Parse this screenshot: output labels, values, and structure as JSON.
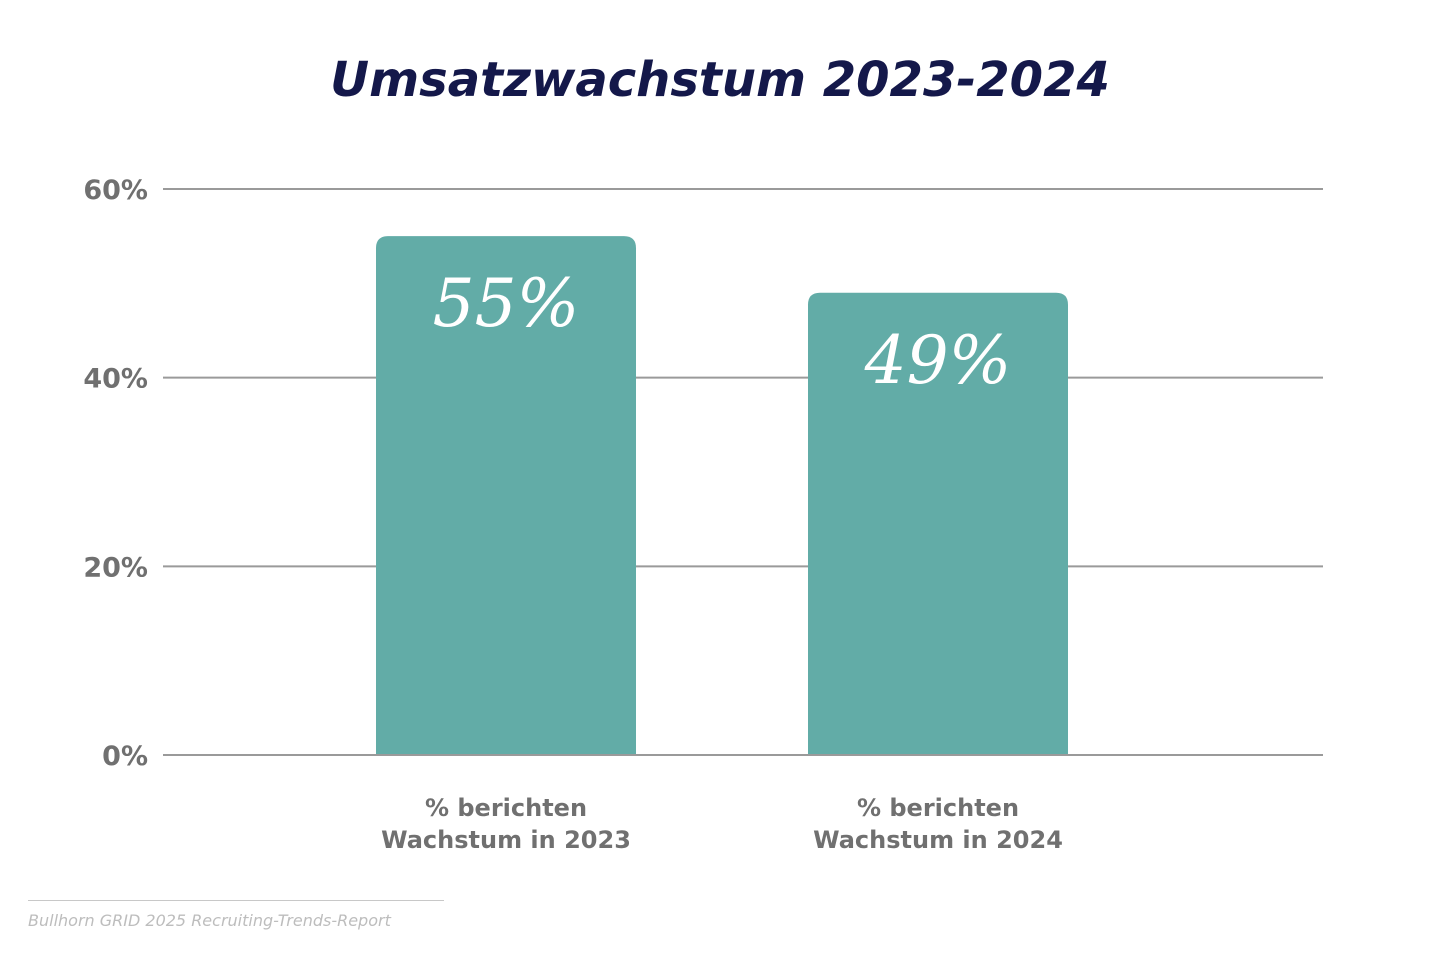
{
  "source": "Bullhorn GRID 2025 Recruiting-Trends-Report",
  "colors": {
    "bar": "#62aca7",
    "title": "#14184a",
    "axis_text": "#707070",
    "grid": "#9a9a9a"
  },
  "chart_data": {
    "type": "bar",
    "title": "Umsatzwachstum 2023-2024",
    "categories": [
      [
        "% berichten",
        "Wachstum in 2023"
      ],
      [
        "% berichten",
        "Wachstum in 2024"
      ]
    ],
    "values": [
      55,
      49
    ],
    "data_labels": [
      "55%",
      "49%"
    ],
    "ylim": [
      0,
      60
    ],
    "yticks": [
      0,
      20,
      40,
      60
    ],
    "ytick_labels": [
      "0%",
      "20%",
      "40%",
      "60%"
    ],
    "grid": true,
    "legend": "none"
  }
}
